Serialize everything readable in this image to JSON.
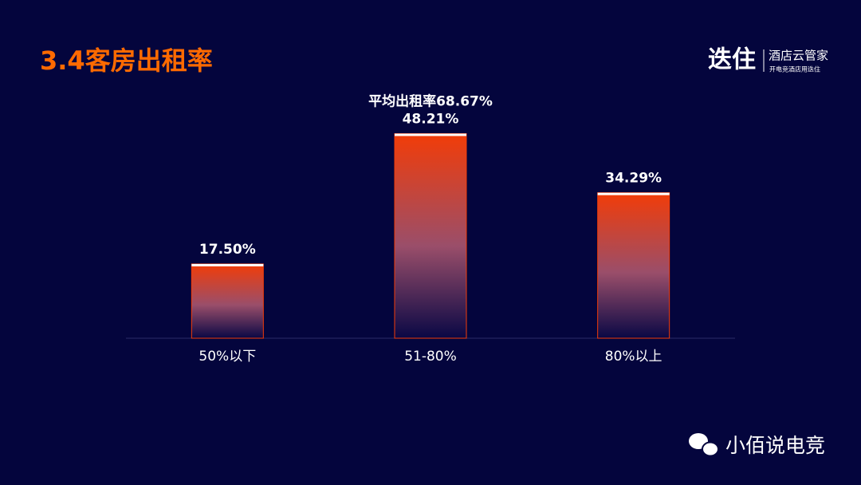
{
  "chart_data": {
    "type": "bar",
    "title": "3.4客房出租率",
    "annotation": "平均出租率68.67%",
    "categories": [
      "50%以下",
      "51-80%",
      "80%以上"
    ],
    "values": [
      17.5,
      48.21,
      34.29
    ],
    "value_labels": [
      "17.50%",
      "48.21%",
      "34.29%"
    ],
    "color": "#f23c08",
    "ylim": [
      0,
      50
    ]
  },
  "logo": {
    "brand": "迭住",
    "name": "酒店云管家",
    "slogan": "开电竞酒店用迭住"
  },
  "watermark": "小佰说电竞"
}
